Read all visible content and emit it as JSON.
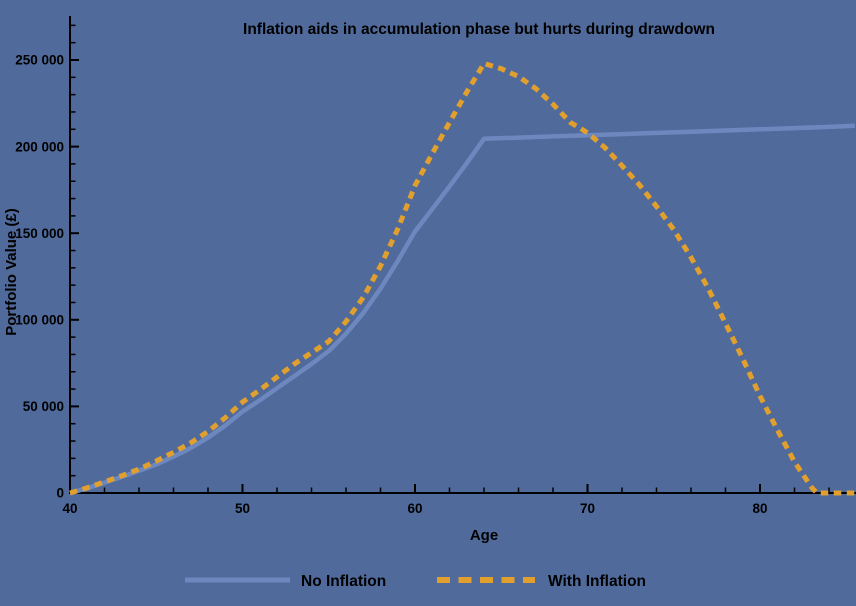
{
  "background_color": "#4F6A9B",
  "axis_color": "#000000",
  "chart_data": {
    "type": "line",
    "title": "Inflation aids in accumulation phase but hurts during drawdown",
    "xlabel": "Age",
    "ylabel": "Portfolio Value (£)",
    "xlim": [
      40,
      85.6
    ],
    "ylim": [
      0,
      276000
    ],
    "grid": false,
    "legend_position": "bottom-center",
    "x_major_ticks": [
      40,
      50,
      60,
      70,
      80
    ],
    "x_tick_labels": [
      "40",
      "50",
      "60",
      "70",
      "80"
    ],
    "x_minor_step": 2,
    "x_minor_max": 84,
    "y_major_ticks": [
      0,
      50000,
      100000,
      150000,
      200000,
      250000
    ],
    "y_tick_labels": [
      "0",
      "50 000",
      "100 000",
      "150 000",
      "200 000",
      "250 000"
    ],
    "y_minor_step": 10000,
    "y_minor_max": 270000,
    "series": [
      {
        "name": "No Inflation",
        "color": "#6C88BE",
        "style": "solid",
        "points": [
          [
            40,
            0
          ],
          [
            41,
            2800
          ],
          [
            42,
            6000
          ],
          [
            43,
            9300
          ],
          [
            44,
            12800
          ],
          [
            45,
            16500
          ],
          [
            46,
            21000
          ],
          [
            47,
            26000
          ],
          [
            48,
            32000
          ],
          [
            49,
            39000
          ],
          [
            50,
            47000
          ],
          [
            51,
            53500
          ],
          [
            52,
            60500
          ],
          [
            53,
            67500
          ],
          [
            54,
            74500
          ],
          [
            55,
            82000
          ],
          [
            56,
            92000
          ],
          [
            57,
            104000
          ],
          [
            58,
            118000
          ],
          [
            59,
            134000
          ],
          [
            60,
            151000
          ],
          [
            61,
            164000
          ],
          [
            62,
            177000
          ],
          [
            63,
            190500
          ],
          [
            64,
            204500
          ],
          [
            66,
            205200
          ],
          [
            68,
            205900
          ],
          [
            70,
            206500
          ],
          [
            72,
            207200
          ],
          [
            74,
            207900
          ],
          [
            76,
            208600
          ],
          [
            78,
            209300
          ],
          [
            80,
            210000
          ],
          [
            82,
            210700
          ],
          [
            84,
            211400
          ],
          [
            85.5,
            212000
          ]
        ]
      },
      {
        "name": "With Inflation",
        "color": "#E1A02E",
        "style": "dashed",
        "points": [
          [
            40,
            0
          ],
          [
            41,
            3000
          ],
          [
            42,
            6400
          ],
          [
            43,
            10000
          ],
          [
            44,
            13800
          ],
          [
            45,
            18500
          ],
          [
            46,
            23500
          ],
          [
            47,
            29000
          ],
          [
            48,
            35500
          ],
          [
            49,
            43500
          ],
          [
            50,
            52500
          ],
          [
            51,
            59500
          ],
          [
            52,
            67000
          ],
          [
            53,
            74500
          ],
          [
            54,
            81000
          ],
          [
            55,
            87500
          ],
          [
            56,
            99000
          ],
          [
            57,
            113000
          ],
          [
            58,
            131000
          ],
          [
            59,
            152500
          ],
          [
            60,
            177500
          ],
          [
            61,
            196000
          ],
          [
            62,
            214000
          ],
          [
            63,
            231500
          ],
          [
            64,
            248000
          ],
          [
            65,
            245000
          ],
          [
            66,
            240500
          ],
          [
            67,
            233500
          ],
          [
            68,
            224500
          ],
          [
            69,
            214000
          ],
          [
            70,
            208000
          ],
          [
            71,
            199500
          ],
          [
            72,
            189000
          ],
          [
            73,
            178000
          ],
          [
            74,
            165500
          ],
          [
            75,
            152000
          ],
          [
            76,
            136000
          ],
          [
            77,
            118000
          ],
          [
            78,
            98000
          ],
          [
            79,
            77500
          ],
          [
            80,
            56000
          ],
          [
            81,
            36500
          ],
          [
            82,
            18000
          ],
          [
            83,
            3000
          ],
          [
            83.3,
            0
          ],
          [
            85.5,
            0
          ]
        ]
      }
    ]
  }
}
